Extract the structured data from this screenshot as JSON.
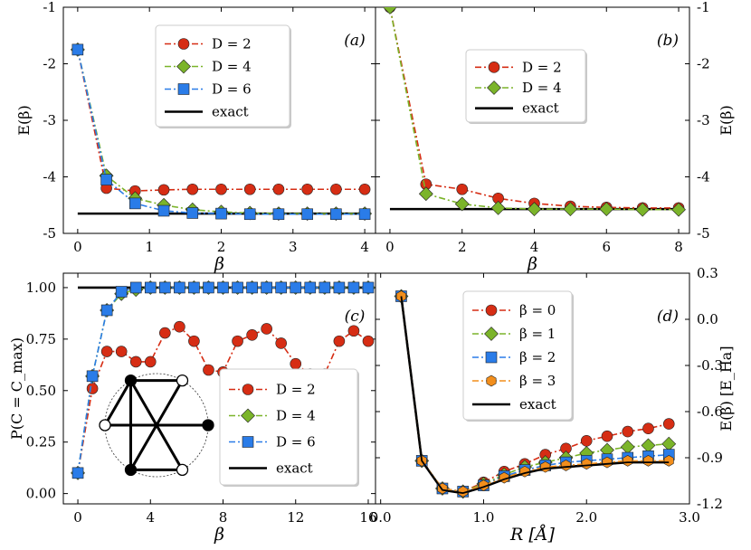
{
  "colors": {
    "D2": "#d62d14",
    "D4": "#7bb42a",
    "D6": "#2a7ce8",
    "b3": "#f28e1c",
    "exact": "#000000"
  },
  "chart_data": [
    {
      "id": "a",
      "type": "line",
      "panel_label": "(a)",
      "xlabel": "β",
      "ylabel": "E(β)",
      "xlim": [
        -0.2,
        4.15
      ],
      "ylim": [
        -5,
        -1
      ],
      "xticks": [
        0,
        1,
        2,
        3,
        4
      ],
      "xtick_labels": [
        "0",
        "1",
        "2",
        "3",
        "4"
      ],
      "yticks": [
        -5,
        -4,
        -3,
        -2,
        -1
      ],
      "ytick_labels": [
        "-5",
        "-4",
        "-3",
        "-2",
        "-1"
      ],
      "legend_position": "top-center",
      "x": [
        0,
        0.4,
        0.8,
        1.2,
        1.6,
        2.0,
        2.4,
        2.8,
        3.2,
        3.6,
        4.0
      ],
      "series": [
        {
          "name": "D = 2",
          "marker": "circle",
          "color": "#d62d14",
          "values": [
            -1.75,
            -4.2,
            -4.25,
            -4.23,
            -4.22,
            -4.22,
            -4.22,
            -4.22,
            -4.22,
            -4.22,
            -4.22
          ]
        },
        {
          "name": "D = 4",
          "marker": "diamond",
          "color": "#7bb42a",
          "values": [
            -1.75,
            -3.98,
            -4.38,
            -4.5,
            -4.58,
            -4.62,
            -4.64,
            -4.65,
            -4.65,
            -4.65,
            -4.65
          ]
        },
        {
          "name": "D = 6",
          "marker": "square",
          "color": "#2a7ce8",
          "values": [
            -1.75,
            -4.05,
            -4.47,
            -4.6,
            -4.64,
            -4.65,
            -4.66,
            -4.66,
            -4.66,
            -4.66,
            -4.66
          ]
        }
      ],
      "exact": {
        "name": "exact",
        "x": [
          0,
          4
        ],
        "values": [
          -4.65,
          -4.65
        ]
      }
    },
    {
      "id": "b",
      "type": "line",
      "panel_label": "(b)",
      "xlabel": "β",
      "ylabel": "E(β)",
      "xlim": [
        -0.4,
        8.3
      ],
      "ylim": [
        -5,
        -1
      ],
      "xticks": [
        0,
        2,
        4,
        6,
        8
      ],
      "xtick_labels": [
        "0",
        "2",
        "4",
        "6",
        "8"
      ],
      "yticks": [
        -5,
        -4,
        -3,
        -2,
        -1
      ],
      "ytick_labels": [
        "-5",
        "-4",
        "-3",
        "-2",
        "-1"
      ],
      "legend_position": "top-center",
      "x": [
        0,
        1,
        2,
        3,
        4,
        5,
        6,
        7,
        8
      ],
      "series": [
        {
          "name": "D = 2",
          "marker": "circle",
          "color": "#d62d14",
          "values": [
            -1.0,
            -4.13,
            -4.22,
            -4.38,
            -4.47,
            -4.52,
            -4.54,
            -4.55,
            -4.55
          ]
        },
        {
          "name": "D = 4",
          "marker": "diamond",
          "color": "#7bb42a",
          "values": [
            -1.0,
            -4.3,
            -4.48,
            -4.55,
            -4.57,
            -4.57,
            -4.57,
            -4.58,
            -4.58
          ]
        }
      ],
      "exact": {
        "name": "exact",
        "x": [
          0,
          8
        ],
        "values": [
          -4.57,
          -4.57
        ]
      }
    },
    {
      "id": "c",
      "type": "line",
      "panel_label": "(c)",
      "xlabel": "β",
      "ylabel": "P(C = C_max)",
      "xlim": [
        -0.8,
        16.4
      ],
      "ylim": [
        -0.05,
        1.07
      ],
      "xticks": [
        0,
        4,
        8,
        12,
        16
      ],
      "xtick_labels": [
        "0",
        "4",
        "8",
        "12",
        "16"
      ],
      "yticks": [
        0.0,
        0.25,
        0.5,
        0.75,
        1.0
      ],
      "ytick_labels": [
        "0.00",
        "0.25",
        "0.50",
        "0.75",
        "1.00"
      ],
      "legend_position": "bottom-right",
      "x": [
        0,
        0.8,
        1.6,
        2.4,
        3.2,
        4.0,
        4.8,
        5.6,
        6.4,
        7.2,
        8.0,
        8.8,
        9.6,
        10.4,
        11.2,
        12.0,
        12.8,
        13.6,
        14.4,
        15.2,
        16.0
      ],
      "series": [
        {
          "name": "D = 2",
          "marker": "circle",
          "color": "#d62d14",
          "values": [
            0.1,
            0.51,
            0.69,
            0.69,
            0.64,
            0.64,
            0.78,
            0.81,
            0.74,
            0.6,
            0.59,
            0.74,
            0.77,
            0.8,
            0.73,
            0.63,
            0.58,
            0.58,
            0.74,
            0.79,
            0.74
          ]
        },
        {
          "name": "D = 4",
          "marker": "diamond",
          "color": "#7bb42a",
          "values": [
            0.1,
            0.57,
            0.89,
            0.97,
            0.99,
            1.0,
            1.0,
            1.0,
            1.0,
            1.0,
            1.0,
            1.0,
            1.0,
            1.0,
            1.0,
            1.0,
            1.0,
            1.0,
            1.0,
            1.0,
            1.0
          ]
        },
        {
          "name": "D = 6",
          "marker": "square",
          "color": "#2a7ce8",
          "values": [
            0.1,
            0.57,
            0.89,
            0.98,
            1.0,
            1.0,
            1.0,
            1.0,
            1.0,
            1.0,
            1.0,
            1.0,
            1.0,
            1.0,
            1.0,
            1.0,
            1.0,
            1.0,
            1.0,
            1.0,
            1.0
          ]
        }
      ],
      "exact": {
        "name": "exact",
        "x": [
          0,
          16
        ],
        "values": [
          1.0,
          1.0
        ]
      },
      "inset": {
        "description": "graph with six vertices on a circle",
        "vertex_fill": [
          "black",
          "white",
          "black",
          "white",
          "black",
          "white"
        ]
      }
    },
    {
      "id": "d",
      "type": "line",
      "panel_label": "(d)",
      "xlabel": "R [Å]",
      "ylabel": "E(β) [E_Ha]",
      "xlim": [
        -0.05,
        3.0
      ],
      "ylim": [
        -1.2,
        0.3
      ],
      "xticks": [
        0.0,
        1.0,
        2.0,
        3.0
      ],
      "xtick_labels": [
        "0.0",
        "1.0",
        "2.0",
        "3.0"
      ],
      "yticks": [
        -1.2,
        -0.9,
        -0.6,
        -0.3,
        0.0,
        0.3
      ],
      "ytick_labels": [
        "-1.2",
        "-0.9",
        "-0.6",
        "-0.3",
        "0.0",
        "0.3"
      ],
      "legend_position": "top-center",
      "x": [
        0.2,
        0.4,
        0.6,
        0.8,
        1.0,
        1.2,
        1.4,
        1.6,
        1.8,
        2.0,
        2.2,
        2.4,
        2.6,
        2.8
      ],
      "series": [
        {
          "name": "β = 0",
          "marker": "circle",
          "color": "#d62d14",
          "values": [
            0.15,
            -0.92,
            -1.1,
            -1.12,
            -1.06,
            -0.99,
            -0.94,
            -0.88,
            -0.84,
            -0.79,
            -0.76,
            -0.73,
            -0.71,
            -0.68
          ]
        },
        {
          "name": "β = 1",
          "marker": "diamond",
          "color": "#7bb42a",
          "values": [
            0.15,
            -0.92,
            -1.1,
            -1.12,
            -1.07,
            -1.01,
            -0.96,
            -0.93,
            -0.9,
            -0.87,
            -0.85,
            -0.83,
            -0.82,
            -0.81
          ]
        },
        {
          "name": "β = 2",
          "marker": "square",
          "color": "#2a7ce8",
          "values": [
            0.15,
            -0.92,
            -1.1,
            -1.12,
            -1.08,
            -1.02,
            -0.98,
            -0.95,
            -0.93,
            -0.92,
            -0.91,
            -0.9,
            -0.89,
            -0.88
          ]
        },
        {
          "name": "β = 3",
          "marker": "hexagon",
          "color": "#f28e1c",
          "values": [
            0.15,
            -0.92,
            -1.1,
            -1.12,
            -1.08,
            -1.03,
            -0.99,
            -0.96,
            -0.95,
            -0.94,
            -0.93,
            -0.92,
            -0.92,
            -0.92
          ]
        }
      ],
      "exact": {
        "name": "exact",
        "x": [
          0.2,
          0.4,
          0.6,
          0.8,
          1.0,
          1.2,
          1.4,
          1.6,
          1.8,
          2.0,
          2.2,
          2.4,
          2.6,
          2.8
        ],
        "values": [
          0.15,
          -0.92,
          -1.11,
          -1.13,
          -1.09,
          -1.04,
          -1.0,
          -0.97,
          -0.96,
          -0.95,
          -0.94,
          -0.93,
          -0.93,
          -0.93
        ]
      }
    }
  ]
}
